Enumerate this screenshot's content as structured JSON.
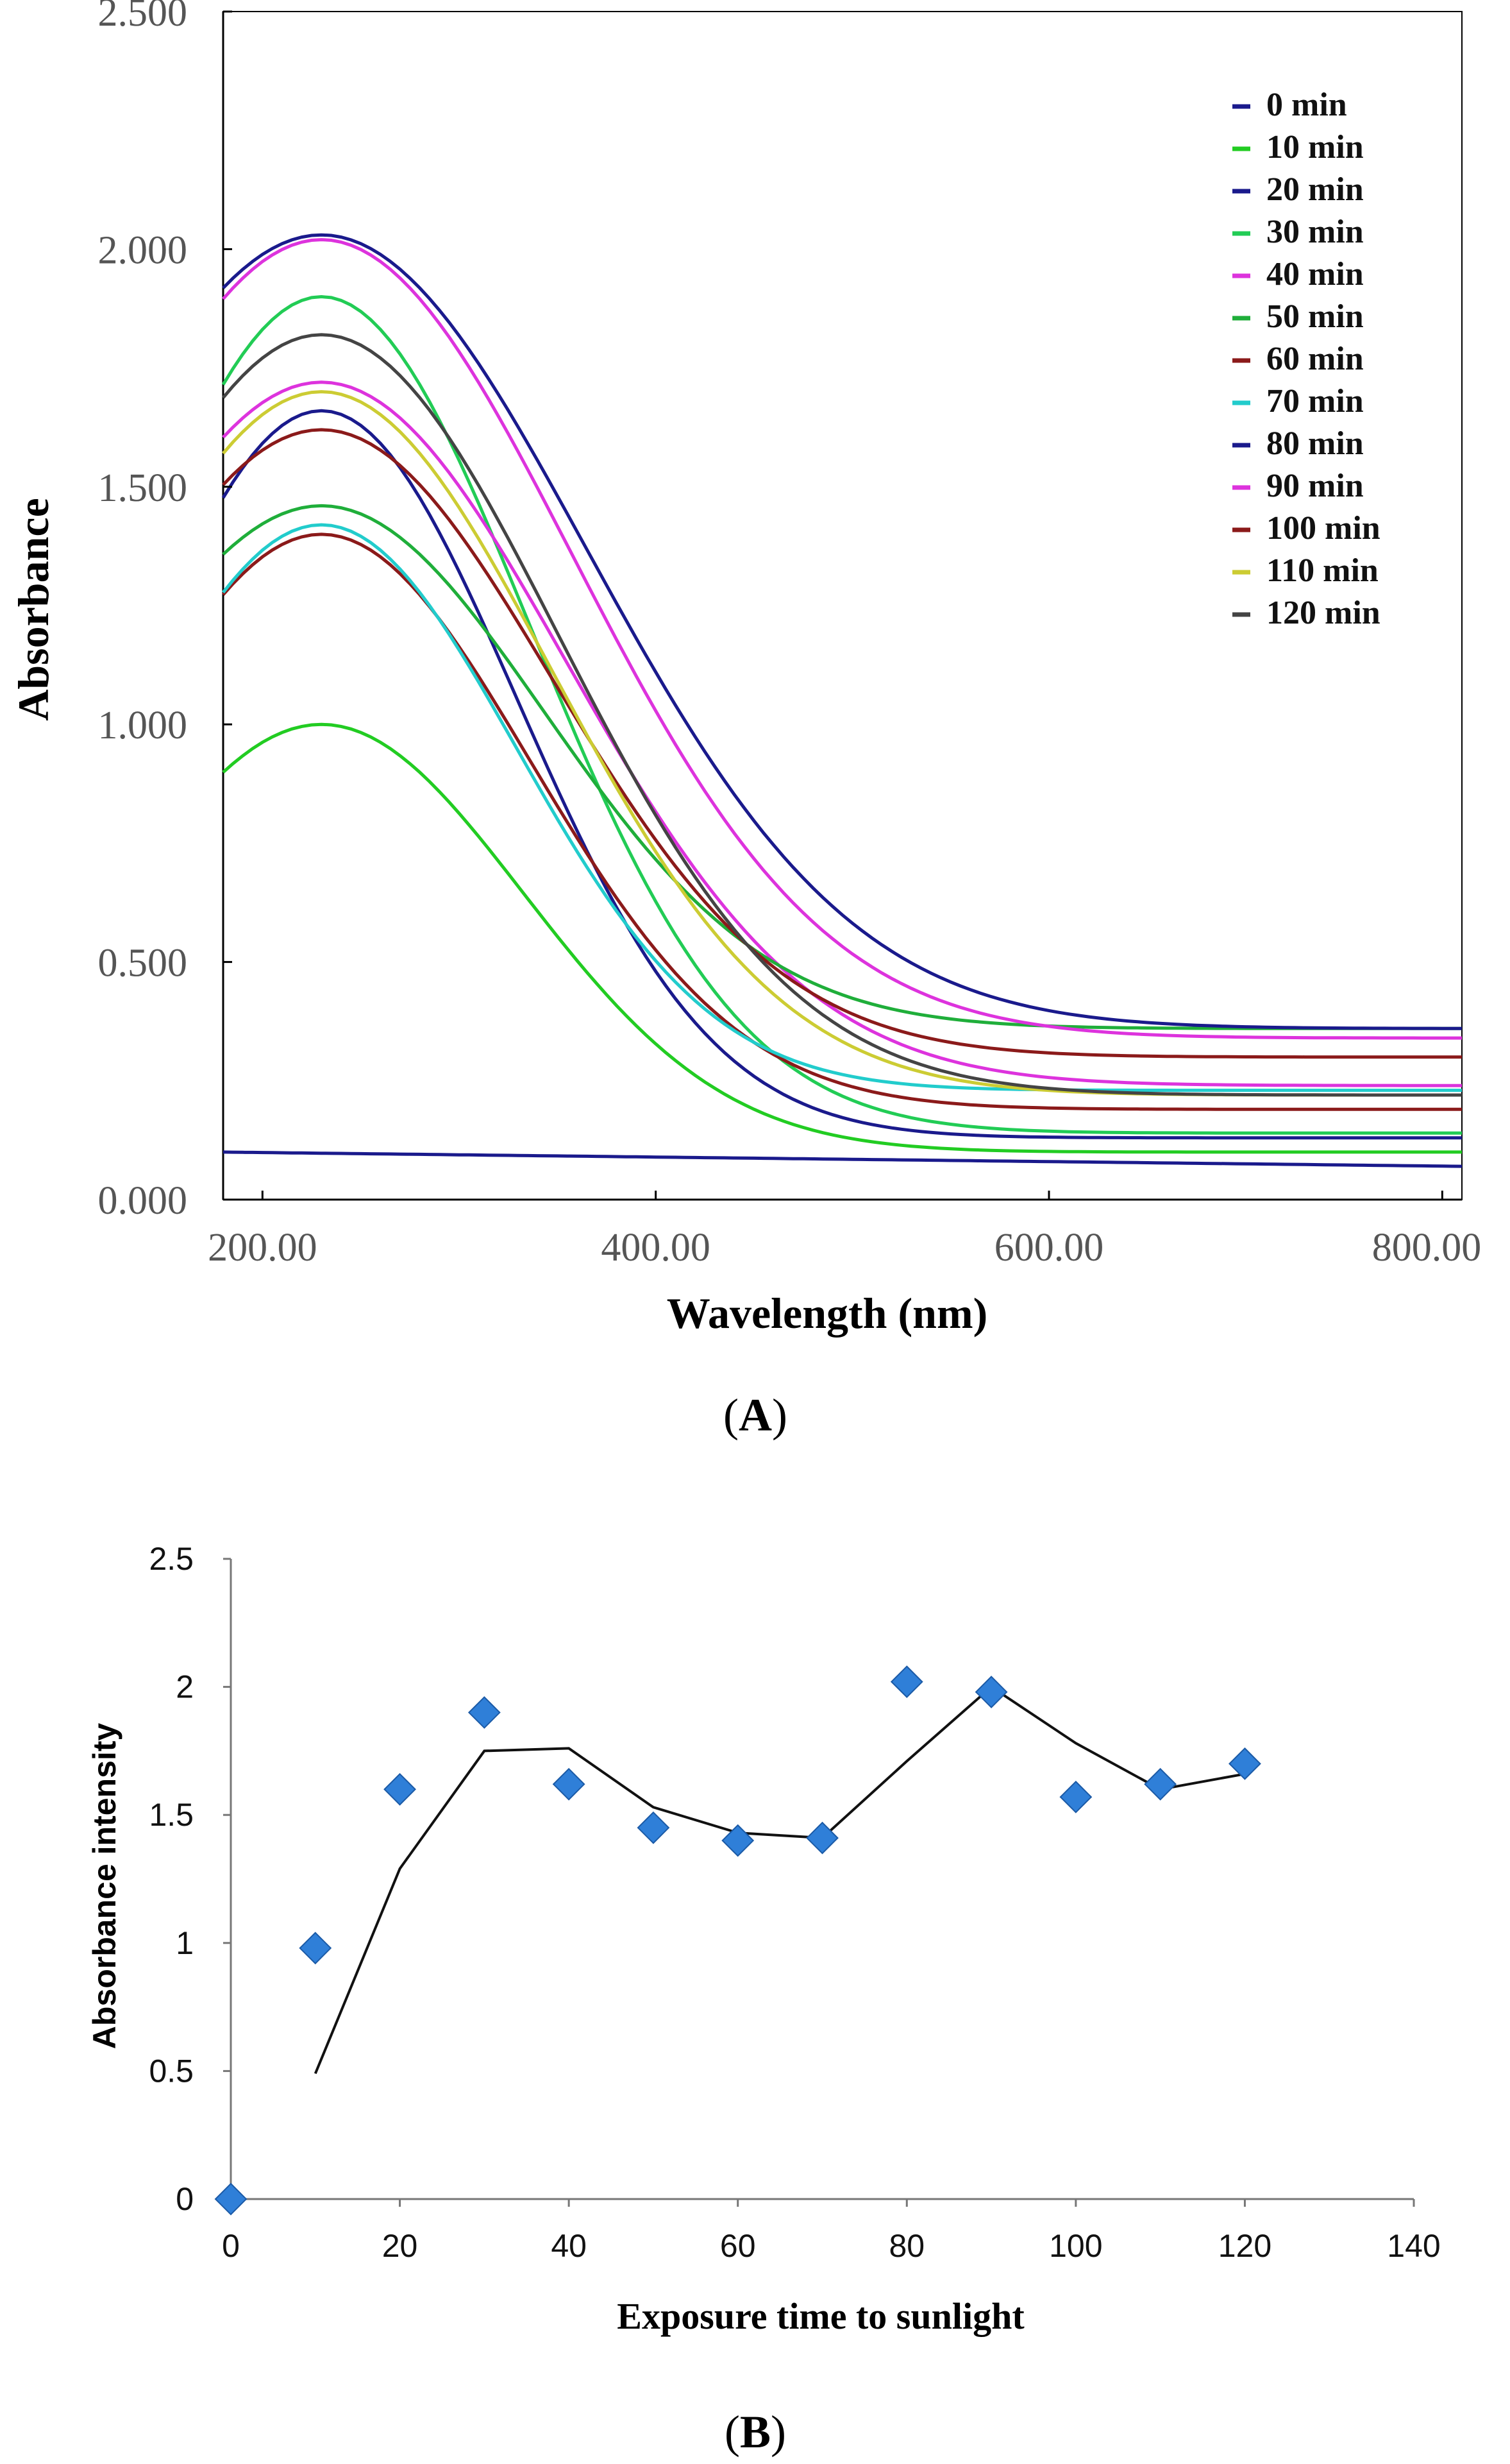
{
  "panels": {
    "A": {
      "label_open": "(",
      "label_letter": "A",
      "label_close": ")"
    },
    "B": {
      "label_open": "(",
      "label_letter": "B",
      "label_close": ")"
    }
  },
  "chart_data": [
    {
      "id": "A",
      "type": "line",
      "title": "",
      "xlabel": "Wavelength (nm)",
      "ylabel": "Absorbance",
      "xlim": [
        180,
        810
      ],
      "ylim": [
        0,
        2.5
      ],
      "x_ticks": [
        200,
        400,
        600,
        800
      ],
      "x_tick_labels": [
        "200.00",
        "400.00",
        "600.00",
        "800.00"
      ],
      "y_ticks": [
        0,
        0.5,
        1.0,
        1.5,
        2.0,
        2.5
      ],
      "y_tick_labels": [
        "0.000",
        "0.500",
        "1.000",
        "1.500",
        "2.000",
        "2.500"
      ],
      "grid": false,
      "legend_position": "top-right",
      "peak_wavelength": 230,
      "series": [
        {
          "name": "0 min",
          "color": "#1a1a8c",
          "peak": 0.1,
          "end": 0.07,
          "decay": 0
        },
        {
          "name": "10 min",
          "color": "#22cc22",
          "peak": 1.0,
          "end": 0.1,
          "decay": 145
        },
        {
          "name": "20 min",
          "color": "#1a1a8c",
          "peak": 1.66,
          "end": 0.13,
          "decay": 140
        },
        {
          "name": "30 min",
          "color": "#22cc55",
          "peak": 1.9,
          "end": 0.14,
          "decay": 150
        },
        {
          "name": "40 min",
          "color": "#dd33dd",
          "peak": 1.72,
          "end": 0.24,
          "decay": 175
        },
        {
          "name": "50 min",
          "color": "#1fae3a",
          "peak": 1.46,
          "end": 0.36,
          "decay": 160
        },
        {
          "name": "60 min",
          "color": "#8b1a1a",
          "peak": 1.4,
          "end": 0.19,
          "decay": 150
        },
        {
          "name": "70 min",
          "color": "#22cccc",
          "peak": 1.42,
          "end": 0.23,
          "decay": 140
        },
        {
          "name": "80 min",
          "color": "#1a1a8c",
          "peak": 2.03,
          "end": 0.36,
          "decay": 190
        },
        {
          "name": "90 min",
          "color": "#dd33dd",
          "peak": 2.02,
          "end": 0.34,
          "decay": 180
        },
        {
          "name": "100 min",
          "color": "#8b1a1a",
          "peak": 1.62,
          "end": 0.3,
          "decay": 165
        },
        {
          "name": "110 min",
          "color": "#cccc33",
          "peak": 1.7,
          "end": 0.22,
          "decay": 165
        },
        {
          "name": "120 min",
          "color": "#444444",
          "peak": 1.82,
          "end": 0.22,
          "decay": 170
        }
      ]
    },
    {
      "id": "B",
      "type": "scatter",
      "title": "",
      "xlabel": "Exposure time to sunlight",
      "ylabel": "Absorbance intensity",
      "xlim": [
        0,
        140
      ],
      "ylim": [
        0,
        2.5
      ],
      "x_ticks": [
        0,
        20,
        40,
        60,
        80,
        100,
        120,
        140
      ],
      "y_ticks": [
        0,
        0.5,
        1,
        1.5,
        2,
        2.5
      ],
      "grid": false,
      "marker_color": "#2f7fd8",
      "line_color": "#111111",
      "points": {
        "x": [
          0,
          10,
          20,
          30,
          40,
          50,
          60,
          70,
          80,
          90,
          100,
          110,
          120
        ],
        "y": [
          0.0,
          0.98,
          1.6,
          1.9,
          1.62,
          1.45,
          1.4,
          1.41,
          2.02,
          1.98,
          1.57,
          1.62,
          1.7
        ]
      },
      "trend_line": {
        "x": [
          10,
          20,
          30,
          40,
          50,
          60,
          70,
          80,
          90,
          100,
          110,
          120
        ],
        "y": [
          0.49,
          1.29,
          1.75,
          1.76,
          1.53,
          1.43,
          1.41,
          1.71,
          2.0,
          1.78,
          1.6,
          1.66
        ]
      }
    }
  ]
}
